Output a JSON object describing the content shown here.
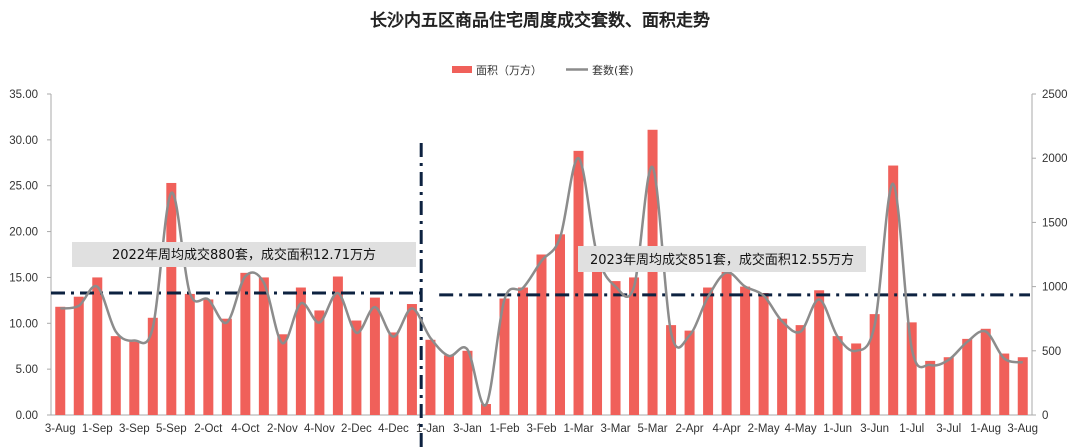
{
  "chart_data": {
    "type": "bar+line",
    "title": "长沙内五区商品住宅周度成交套数、面积走势",
    "legend": {
      "position": "top-center",
      "entries": [
        "面积（万方）",
        "套数(套)"
      ]
    },
    "colors": {
      "bar": "#f0605a",
      "line": "#8c8c8c",
      "ref": "#0d2240",
      "annotation_bg": "#e0e0e0"
    },
    "y_left": {
      "min": 0,
      "max": 35,
      "ticks": [
        "0.00",
        "5.00",
        "10.00",
        "15.00",
        "20.00",
        "25.00",
        "30.00",
        "35.00"
      ]
    },
    "y_right": {
      "min": 0,
      "max": 2500,
      "ticks": [
        "0",
        "500",
        "1000",
        "1500",
        "2000",
        "2500"
      ]
    },
    "x_tick_labels": [
      "3-Aug",
      "1-Sep",
      "3-Sep",
      "5-Sep",
      "2-Oct",
      "4-Oct",
      "2-Nov",
      "4-Nov",
      "2-Dec",
      "4-Dec",
      "1-Jan",
      "3-Jan",
      "1-Feb",
      "3-Feb",
      "1-Mar",
      "3-Mar",
      "5-Mar",
      "2-Apr",
      "4-Apr",
      "2-May",
      "4-May",
      "1-Jun",
      "3-Jun",
      "1-Jul",
      "3-Jul",
      "1-Aug",
      "3-Aug"
    ],
    "series": [
      {
        "name": "面积（万方）",
        "axis": "left",
        "type": "bar",
        "values": [
          11.8,
          12.9,
          15.0,
          8.6,
          8.0,
          10.6,
          25.3,
          13.2,
          12.6,
          10.5,
          15.5,
          15.0,
          8.8,
          13.9,
          11.4,
          15.1,
          10.3,
          12.8,
          9.0,
          12.1,
          8.2,
          6.5,
          7.0,
          1.2,
          12.7,
          13.9,
          17.5,
          19.7,
          28.8,
          16.0,
          14.6,
          15.0,
          31.1,
          9.8,
          9.2,
          13.9,
          16.0,
          14.0,
          13.3,
          10.5,
          9.8,
          13.6,
          8.6,
          7.8,
          11.0,
          27.2,
          10.1,
          5.9,
          6.3,
          8.3,
          9.4,
          6.7,
          6.3
        ]
      },
      {
        "name": "套数(套)",
        "axis": "right",
        "type": "line",
        "values": [
          830,
          850,
          1000,
          650,
          580,
          680,
          1730,
          950,
          900,
          720,
          1080,
          1030,
          560,
          870,
          720,
          950,
          640,
          840,
          610,
          830,
          600,
          460,
          510,
          80,
          900,
          990,
          1200,
          1380,
          2000,
          1250,
          1000,
          1000,
          1930,
          640,
          620,
          920,
          1110,
          1000,
          930,
          730,
          650,
          900,
          610,
          500,
          700,
          1800,
          520,
          390,
          430,
          570,
          650,
          440,
          410
        ]
      }
    ],
    "reference_lines": [
      {
        "label": "2022年周均成交880套，成交面积12.71万方",
        "left_axis_value": 13.3,
        "from_index": 0,
        "to_index": 20
      },
      {
        "label": "2023年周均成交851套，成交面积12.55万方",
        "left_axis_value": 13.1,
        "from_index": 20,
        "to_index": 53
      }
    ],
    "divider_index": 20
  }
}
